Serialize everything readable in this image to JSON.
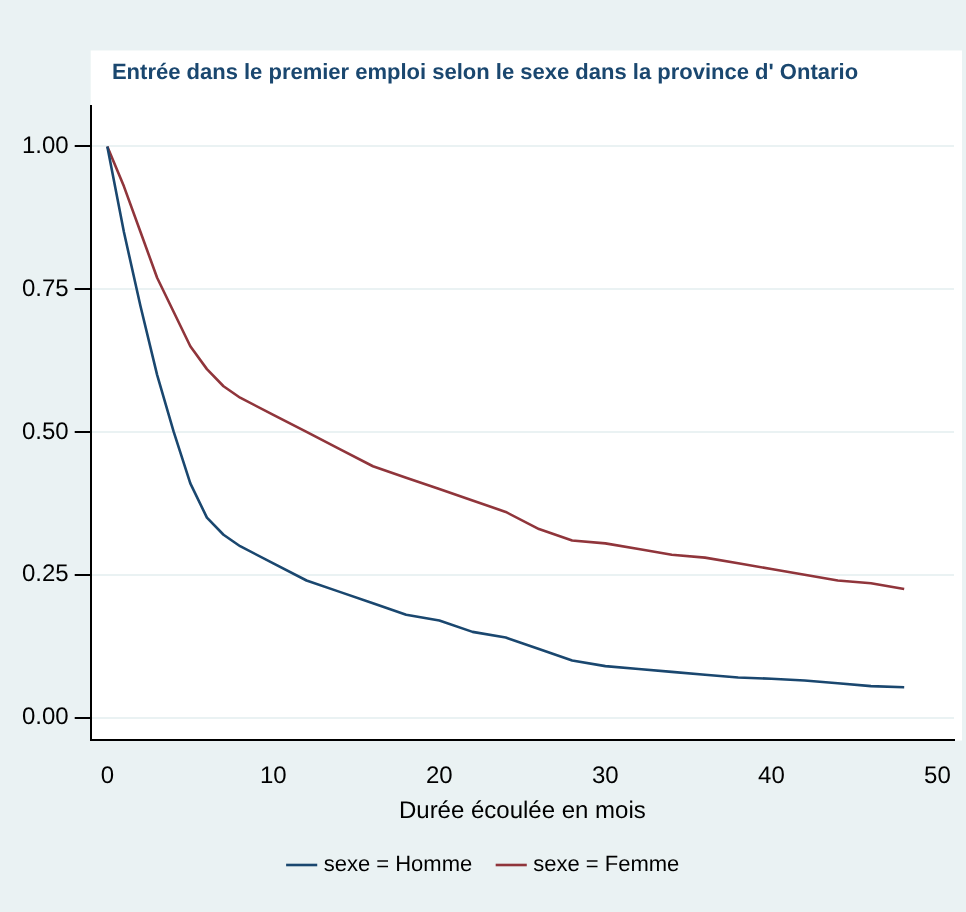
{
  "chart_data": {
    "type": "line",
    "title": "Entrée dans le premier emploi selon le sexe dans la province d' Ontario",
    "xlabel": "Durée écoulée en mois",
    "x": [
      0,
      1,
      2,
      3,
      4,
      5,
      6,
      7,
      8,
      10,
      12,
      14,
      16,
      18,
      20,
      22,
      24,
      26,
      28,
      30,
      32,
      34,
      36,
      38,
      40,
      42,
      44,
      46,
      48
    ],
    "series": [
      {
        "name": "sexe = Homme",
        "color": "#1a476f",
        "values": [
          1,
          0.85,
          0.72,
          0.6,
          0.5,
          0.41,
          0.35,
          0.32,
          0.3,
          0.27,
          0.24,
          0.22,
          0.2,
          0.18,
          0.17,
          0.15,
          0.14,
          0.12,
          0.1,
          0.09,
          0.085,
          0.08,
          0.075,
          0.07,
          0.068,
          0.065,
          0.06,
          0.055,
          0.053
        ]
      },
      {
        "name": "sexe = Femme",
        "color": "#90353b",
        "values": [
          1,
          0.93,
          0.85,
          0.77,
          0.71,
          0.65,
          0.61,
          0.58,
          0.56,
          0.53,
          0.5,
          0.47,
          0.44,
          0.42,
          0.4,
          0.38,
          0.36,
          0.33,
          0.31,
          0.305,
          0.295,
          0.285,
          0.28,
          0.27,
          0.26,
          0.25,
          0.24,
          0.235,
          0.225
        ]
      }
    ],
    "xlim": [
      -1,
      51
    ],
    "xticks": [
      0,
      10,
      20,
      30,
      40,
      50
    ],
    "ylim": [
      -0.04,
      1.07
    ],
    "yticks": [
      {
        "value": 0,
        "label": "0.00"
      },
      {
        "value": 0.25,
        "label": "0.25"
      },
      {
        "value": 0.5,
        "label": "0.50"
      },
      {
        "value": 0.75,
        "label": "0.75"
      },
      {
        "value": 1,
        "label": "1.00"
      }
    ],
    "grid": "y",
    "legend": "bottom",
    "marker": "none",
    "line_style": "solid"
  }
}
